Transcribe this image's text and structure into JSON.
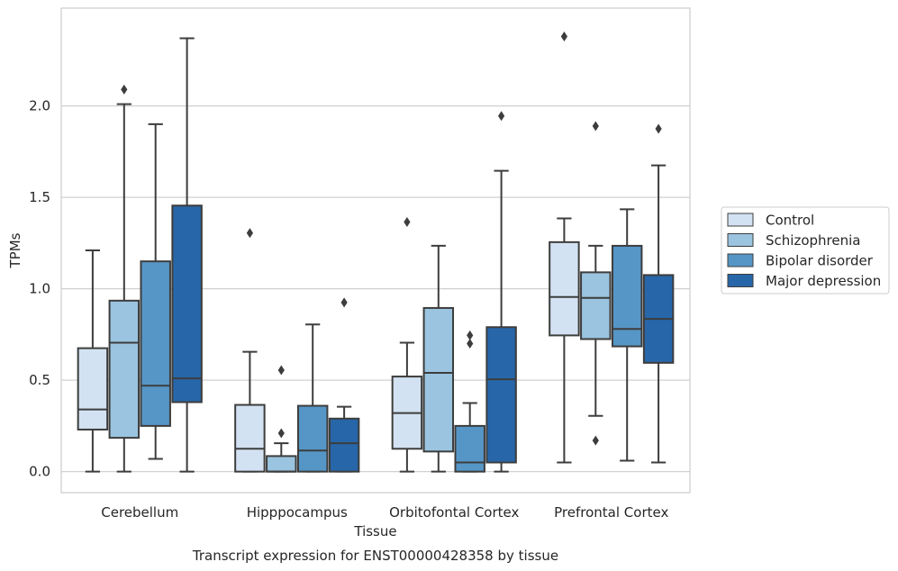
{
  "chart_data": {
    "type": "box",
    "caption": "Transcript expression for ENST00000428358 by tissue",
    "xlabel": "Tissue",
    "ylabel": "TPMs",
    "ylim": [
      -0.115,
      2.535
    ],
    "yticks": [
      0.0,
      0.5,
      1.0,
      1.5,
      2.0
    ],
    "ytick_labels": [
      "0.0",
      "0.5",
      "1.0",
      "1.5",
      "2.0"
    ],
    "grid": "horizontal",
    "legend_position": "right",
    "categories": [
      "Cerebellum",
      "Hipppocampus",
      "Orbitofontal Cortex",
      "Prefrontal Cortex"
    ],
    "series": [
      {
        "name": "Control",
        "color": "#d3e2f2",
        "boxes": [
          {
            "whislo": 0.0,
            "q1": 0.23,
            "med": 0.34,
            "q3": 0.675,
            "whishi": 1.21,
            "fliers": []
          },
          {
            "whislo": 0.0,
            "q1": 0.0,
            "med": 0.125,
            "q3": 0.365,
            "whishi": 0.655,
            "fliers": [
              1.305
            ]
          },
          {
            "whislo": 0.0,
            "q1": 0.125,
            "med": 0.32,
            "q3": 0.52,
            "whishi": 0.705,
            "fliers": [
              1.365
            ]
          },
          {
            "whislo": 0.05,
            "q1": 0.745,
            "med": 0.955,
            "q3": 1.255,
            "whishi": 1.385,
            "fliers": [
              2.38
            ]
          }
        ]
      },
      {
        "name": "Schizophrenia",
        "color": "#9ac4df",
        "boxes": [
          {
            "whislo": 0.0,
            "q1": 0.185,
            "med": 0.705,
            "q3": 0.935,
            "whishi": 2.01,
            "fliers": [
              2.09
            ]
          },
          {
            "whislo": 0.0,
            "q1": 0.0,
            "med": 0.0,
            "q3": 0.085,
            "whishi": 0.155,
            "fliers": [
              0.21,
              0.555
            ]
          },
          {
            "whislo": 0.0,
            "q1": 0.11,
            "med": 0.54,
            "q3": 0.895,
            "whishi": 1.235,
            "fliers": []
          },
          {
            "whislo": 0.305,
            "q1": 0.725,
            "med": 0.95,
            "q3": 1.09,
            "whishi": 1.235,
            "fliers": [
              0.17,
              1.89
            ]
          }
        ]
      },
      {
        "name": "Bipolar disorder",
        "color": "#5696c6",
        "boxes": [
          {
            "whislo": 0.07,
            "q1": 0.25,
            "med": 0.47,
            "q3": 1.15,
            "whishi": 1.9,
            "fliers": []
          },
          {
            "whislo": 0.0,
            "q1": 0.0,
            "med": 0.115,
            "q3": 0.36,
            "whishi": 0.805,
            "fliers": []
          },
          {
            "whislo": 0.0,
            "q1": 0.0,
            "med": 0.05,
            "q3": 0.25,
            "whishi": 0.375,
            "fliers": [
              0.7,
              0.745
            ]
          },
          {
            "whislo": 0.06,
            "q1": 0.685,
            "med": 0.78,
            "q3": 1.235,
            "whishi": 1.435,
            "fliers": []
          }
        ]
      },
      {
        "name": "Major depression",
        "color": "#2766a8",
        "boxes": [
          {
            "whislo": 0.0,
            "q1": 0.38,
            "med": 0.51,
            "q3": 1.455,
            "whishi": 2.37,
            "fliers": []
          },
          {
            "whislo": 0.0,
            "q1": 0.0,
            "med": 0.155,
            "q3": 0.29,
            "whishi": 0.355,
            "fliers": [
              0.925
            ]
          },
          {
            "whislo": 0.0,
            "q1": 0.05,
            "med": 0.505,
            "q3": 0.79,
            "whishi": 1.645,
            "fliers": [
              1.945
            ]
          },
          {
            "whislo": 0.05,
            "q1": 0.595,
            "med": 0.835,
            "q3": 1.075,
            "whishi": 1.675,
            "fliers": [
              1.875
            ]
          }
        ]
      }
    ]
  }
}
